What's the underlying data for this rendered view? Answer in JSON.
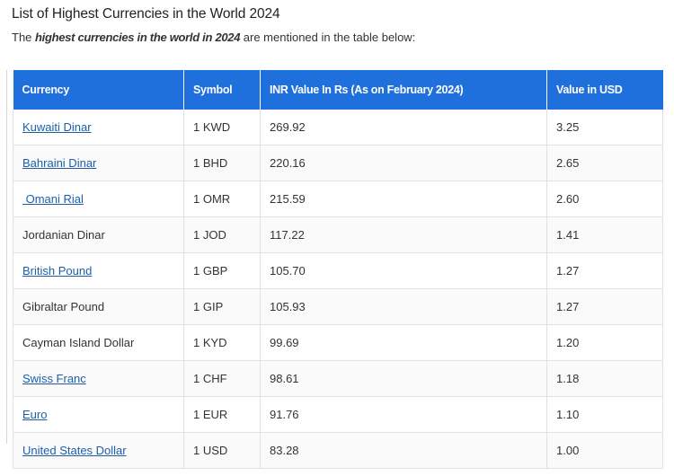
{
  "header": {
    "title": "List of Highest Currencies in the World 2024",
    "intro_prefix": "The ",
    "intro_emphasis": "highest currencies in the world in 2024",
    "intro_suffix": " are mentioned in the table below:"
  },
  "table": {
    "columns": [
      "Currency",
      "Symbol",
      "INR Value In Rs (As on February 2024)",
      "Value in USD"
    ],
    "rows": [
      {
        "currency": "Kuwaiti Dinar",
        "symbol": "1 KWD",
        "inr": "269.92",
        "usd": "3.25"
      },
      {
        "currency": "Bahraini Dinar",
        "symbol": "1 BHD",
        "inr": "220.16",
        "usd": "2.65"
      },
      {
        "currency": " Omani Rial",
        "symbol": "1 OMR",
        "inr": "215.59",
        "usd": "2.60"
      },
      {
        "currency": "Jordanian Dinar",
        "symbol": "1 JOD",
        "inr": "117.22",
        "usd": "1.41"
      },
      {
        "currency": "British Pound",
        "symbol": "1 GBP",
        "inr": "105.70",
        "usd": "1.27"
      },
      {
        "currency": "Gibraltar Pound",
        "symbol": "1 GIP",
        "inr": "105.93",
        "usd": "1.27"
      },
      {
        "currency": "Cayman Island Dollar",
        "symbol": "1 KYD",
        "inr": "99.69",
        "usd": "1.20"
      },
      {
        "currency": "Swiss Franc",
        "symbol": "1 CHF",
        "inr": "98.61",
        "usd": "1.18"
      },
      {
        "currency": "Euro",
        "symbol": "1 EUR",
        "inr": "91.76",
        "usd": "1.10"
      },
      {
        "currency": "United States Dollar",
        "symbol": "1 USD",
        "inr": "83.28",
        "usd": "1.00"
      }
    ]
  },
  "colors": {
    "header_bg": "#1f6fdc",
    "link": "#1e5ea8"
  }
}
